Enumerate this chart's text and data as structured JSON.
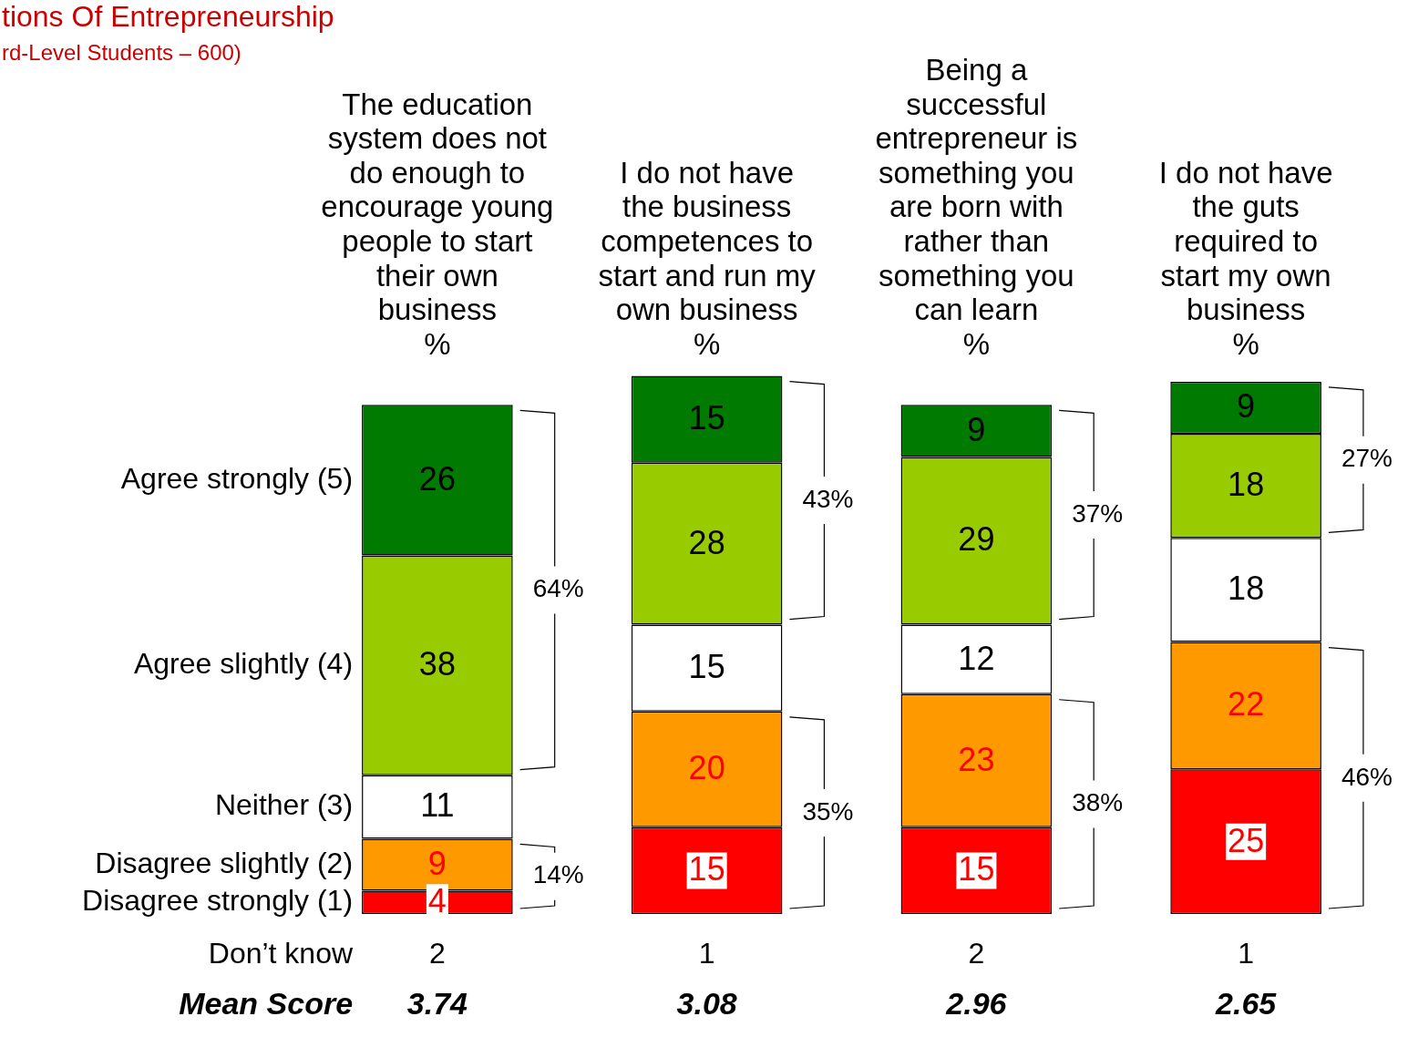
{
  "chart_data": {
    "type": "bar",
    "title": "tions Of Entrepreneurship",
    "subtitle": "rd-Level Students – 600)",
    "ylabel": "%",
    "categories": [
      "The education system does not do enough to encourage young people to start their own business",
      "I do not have the business competences to start and run my own business",
      "Being a successful entrepreneur is something you are born with rather than something you can learn",
      "I do not have the guts required to start my own business"
    ],
    "stacked": true,
    "data_labels": true,
    "tick_labels": "x",
    "series": [
      {
        "name": "Disagree strongly (1)",
        "color": "#ff0000",
        "values": [
          4,
          15,
          15,
          25
        ]
      },
      {
        "name": "Disagree slightly (2)",
        "color": "#ff9900",
        "values": [
          9,
          20,
          23,
          22
        ]
      },
      {
        "name": "Neither (3)",
        "color": "#ffffff",
        "values": [
          11,
          15,
          12,
          18
        ]
      },
      {
        "name": "Agree slightly (4)",
        "color": "#99cc00",
        "values": [
          38,
          28,
          29,
          18
        ]
      },
      {
        "name": "Agree strongly (5)",
        "color": "#007a00",
        "values": [
          26,
          15,
          9,
          9
        ]
      }
    ],
    "annotations": [
      "Don’t know",
      "Mean Score",
      "64%",
      "14%",
      "43%",
      "35%",
      "37%",
      "38%",
      "27%",
      "46%",
      "2",
      "1",
      "2",
      "1",
      "3.74",
      "3.08",
      "2.96",
      "2.65"
    ]
  }
}
